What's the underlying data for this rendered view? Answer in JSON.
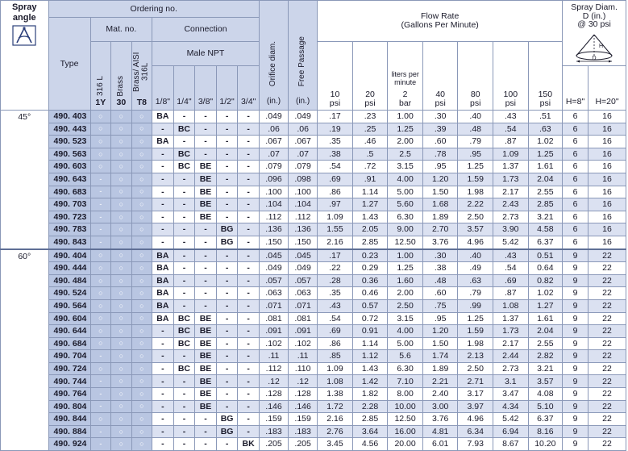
{
  "header": {
    "spray_angle": "Spray angle",
    "ordering_no": "Ordering no.",
    "type": "Type",
    "mat_no": "Mat. no.",
    "connection": "Connection",
    "male_npt": "Male NPT",
    "materials": [
      {
        "name": "316 L",
        "code": "1Y"
      },
      {
        "name": "Brass",
        "code": "30"
      },
      {
        "name": "Brass/ AISI 316L",
        "code": "T8"
      }
    ],
    "connection_sizes": [
      "1/8\"",
      "1/4\"",
      "3/8\"",
      "1/2\"",
      "3/4\""
    ],
    "orifice": "Orifice diam.",
    "orifice_unit": "(in.)",
    "free_passage": "Free Passage",
    "free_passage_unit": "(in.)",
    "flow_rate_line1": "Flow Rate",
    "flow_rate_line2": "(Gallons Per Minute)",
    "flow_cols": [
      {
        "top": "",
        "value": "10",
        "unit": "psi"
      },
      {
        "top": "",
        "value": "20",
        "unit": "psi"
      },
      {
        "top": "liters per minute",
        "value": "2",
        "unit": "bar"
      },
      {
        "top": "",
        "value": "40",
        "unit": "psi"
      },
      {
        "top": "",
        "value": "80",
        "unit": "psi"
      },
      {
        "top": "",
        "value": "100",
        "unit": "psi"
      },
      {
        "top": "",
        "value": "150",
        "unit": "psi"
      }
    ],
    "spray_diam_line1": "Spray Diam.",
    "spray_diam_line2": "D (in.)",
    "spray_diam_line3": "@ 30 psi",
    "h8": "H=8\"",
    "h20": "H=20\"",
    "diagram_label_d": "D",
    "diagram_label_h": "H"
  },
  "groups": [
    {
      "angle": "45°",
      "rows": [
        {
          "type": "490. 403",
          "mat": [
            "○",
            "○",
            "○"
          ],
          "conn": [
            "BA",
            "-",
            "-",
            "-",
            "-"
          ],
          "orifice": ".049",
          "free": ".049",
          "flow": [
            ".17",
            ".23",
            "1.00",
            ".30",
            ".40",
            ".43",
            ".51"
          ],
          "d8": "6",
          "d20": "16"
        },
        {
          "type": "490. 443",
          "mat": [
            "○",
            "○",
            "○"
          ],
          "conn": [
            "-",
            "BC",
            "-",
            "-",
            "-"
          ],
          "orifice": ".06",
          "free": ".06",
          "flow": [
            ".19",
            ".25",
            "1.25",
            ".39",
            ".48",
            ".54",
            ".63"
          ],
          "d8": "6",
          "d20": "16"
        },
        {
          "type": "490. 523",
          "mat": [
            "○",
            "○",
            "○"
          ],
          "conn": [
            "BA",
            "-",
            "-",
            "-",
            "-"
          ],
          "orifice": ".067",
          "free": ".067",
          "flow": [
            ".35",
            ".46",
            "2.00",
            ".60",
            ".79",
            ".87",
            "1.02"
          ],
          "d8": "6",
          "d20": "16"
        },
        {
          "type": "490. 563",
          "mat": [
            "○",
            "○",
            "○"
          ],
          "conn": [
            "-",
            "BC",
            "-",
            "-",
            "-"
          ],
          "orifice": ".07",
          "free": ".07",
          "flow": [
            ".38",
            ".5",
            "2.5",
            ".78",
            ".95",
            "1.09",
            "1.25"
          ],
          "d8": "6",
          "d20": "16"
        },
        {
          "type": "490. 603",
          "mat": [
            "○",
            "○",
            "○"
          ],
          "conn": [
            "-",
            "BC",
            "BE",
            "-",
            "-"
          ],
          "orifice": ".079",
          "free": ".079",
          "flow": [
            ".54",
            ".72",
            "3.15",
            ".95",
            "1.25",
            "1.37",
            "1.61"
          ],
          "d8": "6",
          "d20": "16"
        },
        {
          "type": "490. 643",
          "mat": [
            "-",
            "○",
            "○"
          ],
          "conn": [
            "-",
            "-",
            "BE",
            "-",
            "-"
          ],
          "orifice": ".096",
          "free": ".098",
          "flow": [
            ".69",
            ".91",
            "4.00",
            "1.20",
            "1.59",
            "1.73",
            "2.04"
          ],
          "d8": "6",
          "d20": "16"
        },
        {
          "type": "490. 683",
          "mat": [
            "-",
            "○",
            "○"
          ],
          "conn": [
            "-",
            "-",
            "BE",
            "-",
            "-"
          ],
          "orifice": ".100",
          "free": ".100",
          "flow": [
            ".86",
            "1.14",
            "5.00",
            "1.50",
            "1.98",
            "2.17",
            "2.55"
          ],
          "d8": "6",
          "d20": "16"
        },
        {
          "type": "490. 703",
          "mat": [
            "-",
            "○",
            "○"
          ],
          "conn": [
            "-",
            "-",
            "BE",
            "-",
            "-"
          ],
          "orifice": ".104",
          "free": ".104",
          "flow": [
            ".97",
            "1.27",
            "5.60",
            "1.68",
            "2.22",
            "2.43",
            "2.85"
          ],
          "d8": "6",
          "d20": "16"
        },
        {
          "type": "490. 723",
          "mat": [
            "-",
            "○",
            "○"
          ],
          "conn": [
            "-",
            "-",
            "BE",
            "-",
            "-"
          ],
          "orifice": ".112",
          "free": ".112",
          "flow": [
            "1.09",
            "1.43",
            "6.30",
            "1.89",
            "2.50",
            "2.73",
            "3.21"
          ],
          "d8": "6",
          "d20": "16"
        },
        {
          "type": "490. 783",
          "mat": [
            "-",
            "○",
            "○"
          ],
          "conn": [
            "-",
            "-",
            "-",
            "BG",
            "-"
          ],
          "orifice": ".136",
          "free": ".136",
          "flow": [
            "1.55",
            "2.05",
            "9.00",
            "2.70",
            "3.57",
            "3.90",
            "4.58"
          ],
          "d8": "6",
          "d20": "16"
        },
        {
          "type": "490. 843",
          "mat": [
            "-",
            "○",
            "○"
          ],
          "conn": [
            "-",
            "-",
            "-",
            "BG",
            "-"
          ],
          "orifice": ".150",
          "free": ".150",
          "flow": [
            "2.16",
            "2.85",
            "12.50",
            "3.76",
            "4.96",
            "5.42",
            "6.37"
          ],
          "d8": "6",
          "d20": "16"
        }
      ]
    },
    {
      "angle": "60°",
      "rows": [
        {
          "type": "490. 404",
          "mat": [
            "○",
            "○",
            "○"
          ],
          "conn": [
            "BA",
            "-",
            "-",
            "-",
            "-"
          ],
          "orifice": ".045",
          "free": ".045",
          "flow": [
            ".17",
            "0.23",
            "1.00",
            ".30",
            ".40",
            ".43",
            "0.51"
          ],
          "d8": "9",
          "d20": "22"
        },
        {
          "type": "490. 444",
          "mat": [
            "○",
            "○",
            "○"
          ],
          "conn": [
            "BA",
            "-",
            "-",
            "-",
            "-"
          ],
          "orifice": ".049",
          "free": ".049",
          "flow": [
            ".22",
            "0.29",
            "1.25",
            ".38",
            ".49",
            ".54",
            "0.64"
          ],
          "d8": "9",
          "d20": "22"
        },
        {
          "type": "490. 484",
          "mat": [
            "○",
            "○",
            "○"
          ],
          "conn": [
            "BA",
            "-",
            "-",
            "-",
            "-"
          ],
          "orifice": ".057",
          "free": ".057",
          "flow": [
            ".28",
            "0.36",
            "1.60",
            ".48",
            ".63",
            ".69",
            "0.82"
          ],
          "d8": "9",
          "d20": "22"
        },
        {
          "type": "490. 524",
          "mat": [
            "○",
            "○",
            "○"
          ],
          "conn": [
            "BA",
            "-",
            "-",
            "-",
            "-"
          ],
          "orifice": ".063",
          "free": ".063",
          "flow": [
            ".35",
            "0.46",
            "2.00",
            ".60",
            ".79",
            ".87",
            "1.02"
          ],
          "d8": "9",
          "d20": "22"
        },
        {
          "type": "490. 564",
          "mat": [
            "○",
            "○",
            "○"
          ],
          "conn": [
            "BA",
            "-",
            "-",
            "-",
            "-"
          ],
          "orifice": ".071",
          "free": ".071",
          "flow": [
            ".43",
            "0.57",
            "2.50",
            ".75",
            ".99",
            "1.08",
            "1.27"
          ],
          "d8": "9",
          "d20": "22"
        },
        {
          "type": "490. 604",
          "mat": [
            "○",
            "○",
            "○"
          ],
          "conn": [
            "BA",
            "BC",
            "BE",
            "-",
            "-"
          ],
          "orifice": ".081",
          "free": ".081",
          "flow": [
            ".54",
            "0.72",
            "3.15",
            ".95",
            "1.25",
            "1.37",
            "1.61"
          ],
          "d8": "9",
          "d20": "22"
        },
        {
          "type": "490. 644",
          "mat": [
            "○",
            "○",
            "○"
          ],
          "conn": [
            "-",
            "BC",
            "BE",
            "-",
            "-"
          ],
          "orifice": ".091",
          "free": ".091",
          "flow": [
            ".69",
            "0.91",
            "4.00",
            "1.20",
            "1.59",
            "1.73",
            "2.04"
          ],
          "d8": "9",
          "d20": "22"
        },
        {
          "type": "490. 684",
          "mat": [
            "○",
            "○",
            "○"
          ],
          "conn": [
            "-",
            "BC",
            "BE",
            "-",
            "-"
          ],
          "orifice": ".102",
          "free": ".102",
          "flow": [
            ".86",
            "1.14",
            "5.00",
            "1.50",
            "1.98",
            "2.17",
            "2.55"
          ],
          "d8": "9",
          "d20": "22"
        },
        {
          "type": "490. 704",
          "mat": [
            "-",
            "○",
            "○"
          ],
          "conn": [
            "-",
            "-",
            "BE",
            "-",
            "-"
          ],
          "orifice": ".11",
          "free": ".11",
          "flow": [
            ".85",
            "1.12",
            "5.6",
            "1.74",
            "2.13",
            "2.44",
            "2.82"
          ],
          "d8": "9",
          "d20": "22"
        },
        {
          "type": "490. 724",
          "mat": [
            "○",
            "○",
            "○"
          ],
          "conn": [
            "-",
            "BC",
            "BE",
            "-",
            "-"
          ],
          "orifice": ".112",
          "free": ".110",
          "flow": [
            "1.09",
            "1.43",
            "6.30",
            "1.89",
            "2.50",
            "2.73",
            "3.21"
          ],
          "d8": "9",
          "d20": "22"
        },
        {
          "type": "490. 744",
          "mat": [
            "-",
            "○",
            "○"
          ],
          "conn": [
            "-",
            "-",
            "BE",
            "-",
            "-"
          ],
          "orifice": ".12",
          "free": ".12",
          "flow": [
            "1.08",
            "1.42",
            "7.10",
            "2.21",
            "2.71",
            "3.1",
            "3.57"
          ],
          "d8": "9",
          "d20": "22"
        },
        {
          "type": "490. 764",
          "mat": [
            "-",
            "○",
            "○"
          ],
          "conn": [
            "-",
            "-",
            "BE",
            "-",
            "-"
          ],
          "orifice": ".128",
          "free": ".128",
          "flow": [
            "1.38",
            "1.82",
            "8.00",
            "2.40",
            "3.17",
            "3.47",
            "4.08"
          ],
          "d8": "9",
          "d20": "22"
        },
        {
          "type": "490. 804",
          "mat": [
            "-",
            "○",
            "○"
          ],
          "conn": [
            "-",
            "-",
            "BE",
            "-",
            "-"
          ],
          "orifice": ".146",
          "free": ".146",
          "flow": [
            "1.72",
            "2.28",
            "10.00",
            "3.00",
            "3.97",
            "4.34",
            "5.10"
          ],
          "d8": "9",
          "d20": "22"
        },
        {
          "type": "490. 844",
          "mat": [
            "○",
            "○",
            "○"
          ],
          "conn": [
            "-",
            "-",
            "-",
            "BG",
            "-"
          ],
          "orifice": ".159",
          "free": ".159",
          "flow": [
            "2.16",
            "2.85",
            "12.50",
            "3.76",
            "4.96",
            "5.42",
            "6.37"
          ],
          "d8": "9",
          "d20": "22"
        },
        {
          "type": "490. 884",
          "mat": [
            "-",
            "○",
            "○"
          ],
          "conn": [
            "-",
            "-",
            "-",
            "BG",
            "-"
          ],
          "orifice": ".183",
          "free": ".183",
          "flow": [
            "2.76",
            "3.64",
            "16.00",
            "4.81",
            "6.34",
            "6.94",
            "8.16"
          ],
          "d8": "9",
          "d20": "22"
        },
        {
          "type": "490. 924",
          "mat": [
            "-",
            "○",
            "○"
          ],
          "conn": [
            "-",
            "-",
            "-",
            "-",
            "BK"
          ],
          "orifice": ".205",
          "free": ".205",
          "flow": [
            "3.45",
            "4.56",
            "20.00",
            "6.01",
            "7.93",
            "8.67",
            "10.20"
          ],
          "d8": "9",
          "d20": "22"
        }
      ]
    }
  ]
}
